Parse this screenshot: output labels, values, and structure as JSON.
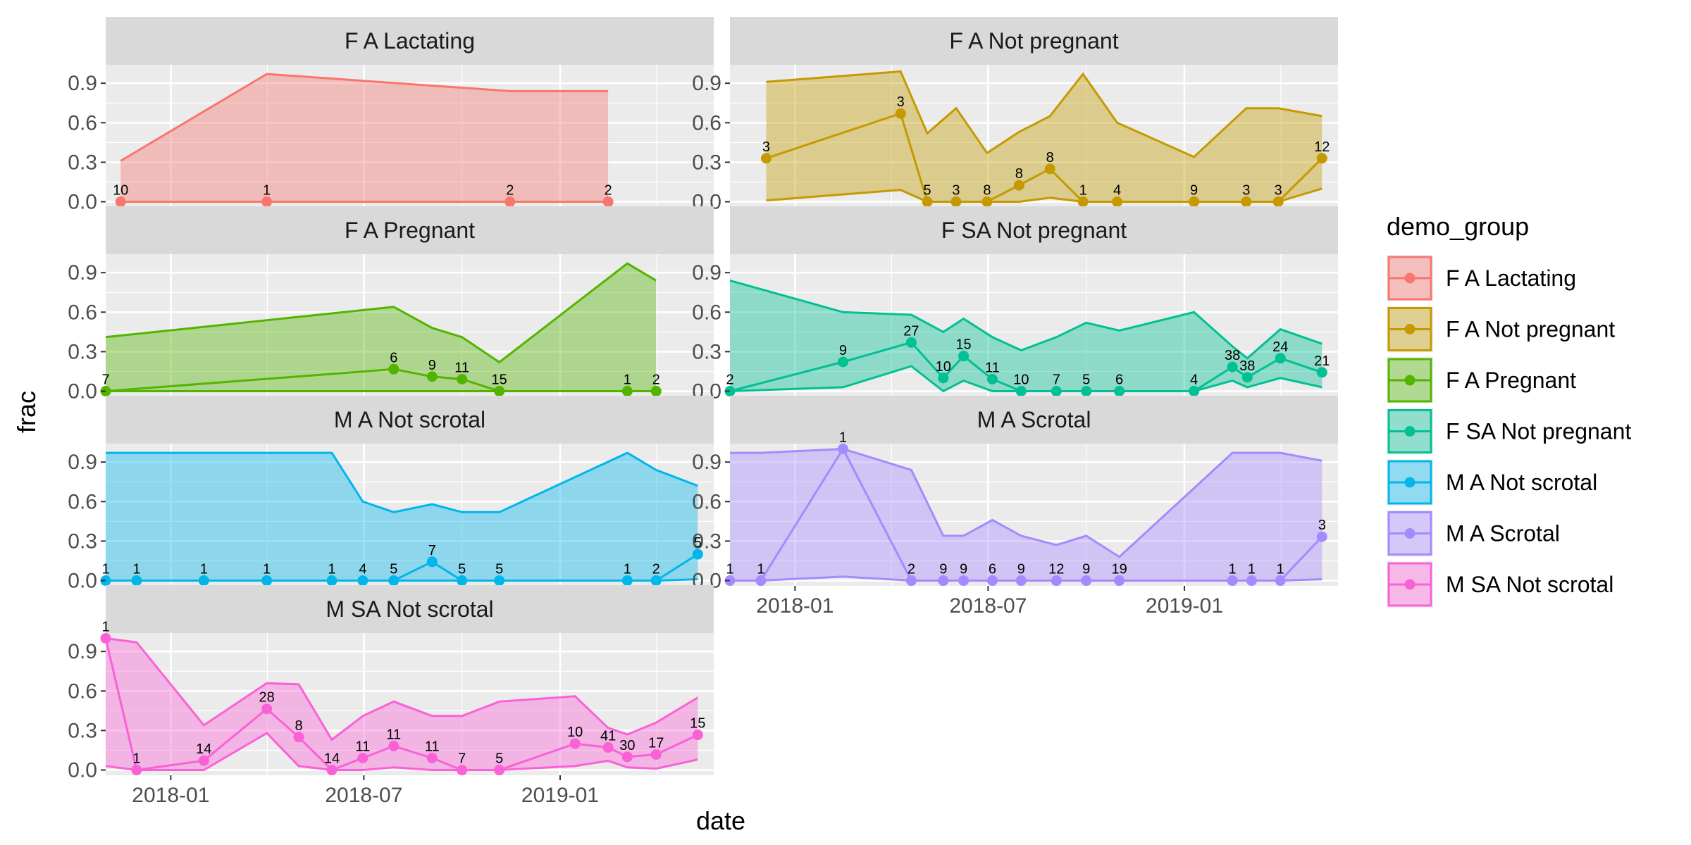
{
  "chart_data": {
    "type": "line",
    "chart_style": "faceted line + ribbon (ggplot2)",
    "xlabel": "date",
    "ylabel": "frac",
    "x_domain": [
      "2017-11-01",
      "2019-05-25"
    ],
    "ylim": [
      -0.04,
      1.04
    ],
    "y_ticks": [
      0,
      0.3,
      0.6,
      0.9
    ],
    "y_tick_labels": [
      "0.0",
      "0.3",
      "0.6",
      "0.9"
    ],
    "x_ticks": [
      "2018-01-01",
      "2018-07-01",
      "2019-01-01"
    ],
    "x_tick_labels": [
      "2018-01",
      "2018-07",
      "2019-01"
    ],
    "grid": true,
    "legend": {
      "title": "demo_group",
      "position": "right",
      "entries": [
        "F A Lactating",
        "F A Not pregnant",
        "F A Pregnant",
        "F SA Not pregnant",
        "M A Not scrotal",
        "M A Scrotal",
        "M SA Not scrotal"
      ]
    },
    "series": [
      {
        "name": "F A Lactating",
        "color": "#F8766D",
        "points": [
          {
            "date": "2017-11-15",
            "frac": 0.0,
            "n": 10,
            "lo": 0.0,
            "hi": 0.31
          },
          {
            "date": "2018-04-01",
            "frac": 0.0,
            "n": 1,
            "lo": 0.0,
            "hi": 0.97
          },
          {
            "date": "2018-11-15",
            "frac": 0.0,
            "n": 2,
            "lo": 0.0,
            "hi": 0.84
          },
          {
            "date": "2019-02-15",
            "frac": 0.0,
            "n": 2,
            "lo": 0.0,
            "hi": 0.84
          }
        ]
      },
      {
        "name": "F A Not pregnant",
        "color": "#C49A00",
        "points": [
          {
            "date": "2017-12-05",
            "frac": 0.33,
            "n": 3,
            "lo": 0.01,
            "hi": 0.91
          },
          {
            "date": "2018-04-10",
            "frac": 0.67,
            "n": 3,
            "lo": 0.09,
            "hi": 0.99
          },
          {
            "date": "2018-05-05",
            "frac": 0.0,
            "n": 5,
            "lo": 0.0,
            "hi": 0.52
          },
          {
            "date": "2018-06-01",
            "frac": 0.0,
            "n": 3,
            "lo": 0.0,
            "hi": 0.71
          },
          {
            "date": "2018-06-30",
            "frac": 0.0,
            "n": 8,
            "lo": 0.0,
            "hi": 0.37
          },
          {
            "date": "2018-07-30",
            "frac": 0.125,
            "n": 8,
            "lo": 0.0,
            "hi": 0.53
          },
          {
            "date": "2018-08-28",
            "frac": 0.25,
            "n": 8,
            "lo": 0.03,
            "hi": 0.65
          },
          {
            "date": "2018-09-28",
            "frac": 0.0,
            "n": 1,
            "lo": 0.0,
            "hi": 0.97
          },
          {
            "date": "2018-10-30",
            "frac": 0.0,
            "n": 4,
            "lo": 0.0,
            "hi": 0.6
          },
          {
            "date": "2019-01-10",
            "frac": 0.0,
            "n": 9,
            "lo": 0.0,
            "hi": 0.34
          },
          {
            "date": "2019-02-28",
            "frac": 0.0,
            "n": 3,
            "lo": 0.0,
            "hi": 0.71
          },
          {
            "date": "2019-03-30",
            "frac": 0.0,
            "n": 3,
            "lo": 0.0,
            "hi": 0.71
          },
          {
            "date": "2019-05-10",
            "frac": 0.33,
            "n": 12,
            "lo": 0.1,
            "hi": 0.65
          }
        ]
      },
      {
        "name": "F A Pregnant",
        "color": "#53B400",
        "points": [
          {
            "date": "2017-11-01",
            "frac": 0.0,
            "n": 7,
            "lo": 0.0,
            "hi": 0.41
          },
          {
            "date": "2018-07-29",
            "frac": 0.167,
            "n": 6,
            "lo": 0.0,
            "hi": 0.64
          },
          {
            "date": "2018-09-03",
            "frac": 0.111,
            "n": 9,
            "lo": 0.0,
            "hi": 0.48
          },
          {
            "date": "2018-10-01",
            "frac": 0.091,
            "n": 11,
            "lo": 0.0,
            "hi": 0.41
          },
          {
            "date": "2018-11-05",
            "frac": 0.0,
            "n": 15,
            "lo": 0.0,
            "hi": 0.22
          },
          {
            "date": "2019-03-05",
            "frac": 0.0,
            "n": 1,
            "lo": 0.0,
            "hi": 0.97
          },
          {
            "date": "2019-04-01",
            "frac": 0.0,
            "n": 2,
            "lo": 0.0,
            "hi": 0.84
          }
        ]
      },
      {
        "name": "F SA Not pregnant",
        "color": "#00C094",
        "points": [
          {
            "date": "2017-11-01",
            "frac": 0.0,
            "n": 2,
            "lo": 0.0,
            "hi": 0.84
          },
          {
            "date": "2018-02-15",
            "frac": 0.222,
            "n": 9,
            "lo": 0.03,
            "hi": 0.6
          },
          {
            "date": "2018-04-20",
            "frac": 0.37,
            "n": 27,
            "lo": 0.19,
            "hi": 0.58
          },
          {
            "date": "2018-05-20",
            "frac": 0.1,
            "n": 10,
            "lo": 0.0,
            "hi": 0.45
          },
          {
            "date": "2018-06-08",
            "frac": 0.267,
            "n": 15,
            "lo": 0.08,
            "hi": 0.55
          },
          {
            "date": "2018-07-05",
            "frac": 0.091,
            "n": 11,
            "lo": 0.0,
            "hi": 0.41
          },
          {
            "date": "2018-08-01",
            "frac": 0.0,
            "n": 10,
            "lo": 0.0,
            "hi": 0.31
          },
          {
            "date": "2018-09-03",
            "frac": 0.0,
            "n": 7,
            "lo": 0.0,
            "hi": 0.41
          },
          {
            "date": "2018-10-01",
            "frac": 0.0,
            "n": 5,
            "lo": 0.0,
            "hi": 0.52
          },
          {
            "date": "2018-11-01",
            "frac": 0.0,
            "n": 6,
            "lo": 0.0,
            "hi": 0.46
          },
          {
            "date": "2019-01-10",
            "frac": 0.0,
            "n": 4,
            "lo": 0.0,
            "hi": 0.6
          },
          {
            "date": "2019-02-15",
            "frac": 0.184,
            "n": 38,
            "lo": 0.08,
            "hi": 0.34
          },
          {
            "date": "2019-03-01",
            "frac": 0.105,
            "n": 38,
            "lo": 0.03,
            "hi": 0.25
          },
          {
            "date": "2019-04-01",
            "frac": 0.25,
            "n": 24,
            "lo": 0.1,
            "hi": 0.47
          },
          {
            "date": "2019-05-10",
            "frac": 0.143,
            "n": 21,
            "lo": 0.03,
            "hi": 0.36
          }
        ]
      },
      {
        "name": "M A Not scrotal",
        "color": "#00B6EB",
        "points": [
          {
            "date": "2017-11-01",
            "frac": 0.0,
            "n": 1,
            "lo": 0.0,
            "hi": 0.97
          },
          {
            "date": "2017-11-30",
            "frac": 0.0,
            "n": 1,
            "lo": 0.0,
            "hi": 0.97
          },
          {
            "date": "2018-02-01",
            "frac": 0.0,
            "n": 1,
            "lo": 0.0,
            "hi": 0.97
          },
          {
            "date": "2018-04-01",
            "frac": 0.0,
            "n": 1,
            "lo": 0.0,
            "hi": 0.97
          },
          {
            "date": "2018-06-01",
            "frac": 0.0,
            "n": 1,
            "lo": 0.0,
            "hi": 0.97
          },
          {
            "date": "2018-06-30",
            "frac": 0.0,
            "n": 4,
            "lo": 0.0,
            "hi": 0.6
          },
          {
            "date": "2018-07-29",
            "frac": 0.0,
            "n": 5,
            "lo": 0.0,
            "hi": 0.52
          },
          {
            "date": "2018-09-03",
            "frac": 0.143,
            "n": 7,
            "lo": 0.0,
            "hi": 0.58
          },
          {
            "date": "2018-10-01",
            "frac": 0.0,
            "n": 5,
            "lo": 0.0,
            "hi": 0.52
          },
          {
            "date": "2018-11-05",
            "frac": 0.0,
            "n": 5,
            "lo": 0.0,
            "hi": 0.52
          },
          {
            "date": "2019-03-05",
            "frac": 0.0,
            "n": 1,
            "lo": 0.0,
            "hi": 0.97
          },
          {
            "date": "2019-04-01",
            "frac": 0.0,
            "n": 2,
            "lo": 0.0,
            "hi": 0.84
          },
          {
            "date": "2019-05-10",
            "frac": 0.2,
            "n": 5,
            "lo": 0.01,
            "hi": 0.72
          }
        ]
      },
      {
        "name": "M A Scrotal",
        "color": "#A58AFF",
        "points": [
          {
            "date": "2017-11-01",
            "frac": 0.0,
            "n": 1,
            "lo": 0.0,
            "hi": 0.97
          },
          {
            "date": "2017-11-30",
            "frac": 0.0,
            "n": 1,
            "lo": 0.0,
            "hi": 0.97
          },
          {
            "date": "2018-02-15",
            "frac": 1.0,
            "n": 1,
            "lo": 0.03,
            "hi": 1.0
          },
          {
            "date": "2018-04-20",
            "frac": 0.0,
            "n": 2,
            "lo": 0.0,
            "hi": 0.84
          },
          {
            "date": "2018-05-20",
            "frac": 0.0,
            "n": 9,
            "lo": 0.0,
            "hi": 0.34
          },
          {
            "date": "2018-06-08",
            "frac": 0.0,
            "n": 9,
            "lo": 0.0,
            "hi": 0.34
          },
          {
            "date": "2018-07-05",
            "frac": 0.0,
            "n": 6,
            "lo": 0.0,
            "hi": 0.46
          },
          {
            "date": "2018-08-01",
            "frac": 0.0,
            "n": 9,
            "lo": 0.0,
            "hi": 0.34
          },
          {
            "date": "2018-09-03",
            "frac": 0.0,
            "n": 12,
            "lo": 0.0,
            "hi": 0.27
          },
          {
            "date": "2018-10-01",
            "frac": 0.0,
            "n": 9,
            "lo": 0.0,
            "hi": 0.34
          },
          {
            "date": "2018-11-01",
            "frac": 0.0,
            "n": 19,
            "lo": 0.0,
            "hi": 0.18
          },
          {
            "date": "2019-02-15",
            "frac": 0.0,
            "n": 1,
            "lo": 0.0,
            "hi": 0.97
          },
          {
            "date": "2019-03-05",
            "frac": 0.0,
            "n": 1,
            "lo": 0.0,
            "hi": 0.97
          },
          {
            "date": "2019-04-01",
            "frac": 0.0,
            "n": 1,
            "lo": 0.0,
            "hi": 0.97
          },
          {
            "date": "2019-05-10",
            "frac": 0.333,
            "n": 3,
            "lo": 0.01,
            "hi": 0.91
          }
        ]
      },
      {
        "name": "M SA Not scrotal",
        "color": "#FB61D7",
        "points": [
          {
            "date": "2017-11-01",
            "frac": 1.0,
            "n": 1,
            "lo": 0.03,
            "hi": 1.0
          },
          {
            "date": "2017-11-30",
            "frac": 0.0,
            "n": 1,
            "lo": 0.0,
            "hi": 0.97
          },
          {
            "date": "2018-02-01",
            "frac": 0.071,
            "n": 14,
            "lo": 0.0,
            "hi": 0.34
          },
          {
            "date": "2018-04-01",
            "frac": 0.464,
            "n": 28,
            "lo": 0.28,
            "hi": 0.66
          },
          {
            "date": "2018-05-01",
            "frac": 0.25,
            "n": 8,
            "lo": 0.03,
            "hi": 0.65
          },
          {
            "date": "2018-06-01",
            "frac": 0.0,
            "n": 14,
            "lo": 0.0,
            "hi": 0.23
          },
          {
            "date": "2018-06-30",
            "frac": 0.091,
            "n": 11,
            "lo": 0.0,
            "hi": 0.41
          },
          {
            "date": "2018-07-29",
            "frac": 0.182,
            "n": 11,
            "lo": 0.02,
            "hi": 0.52
          },
          {
            "date": "2018-09-03",
            "frac": 0.091,
            "n": 11,
            "lo": 0.0,
            "hi": 0.41
          },
          {
            "date": "2018-10-01",
            "frac": 0.0,
            "n": 7,
            "lo": 0.0,
            "hi": 0.41
          },
          {
            "date": "2018-11-05",
            "frac": 0.0,
            "n": 5,
            "lo": 0.0,
            "hi": 0.52
          },
          {
            "date": "2019-01-15",
            "frac": 0.2,
            "n": 10,
            "lo": 0.03,
            "hi": 0.56
          },
          {
            "date": "2019-02-15",
            "frac": 0.171,
            "n": 41,
            "lo": 0.07,
            "hi": 0.32
          },
          {
            "date": "2019-03-05",
            "frac": 0.1,
            "n": 30,
            "lo": 0.02,
            "hi": 0.27
          },
          {
            "date": "2019-04-01",
            "frac": 0.118,
            "n": 17,
            "lo": 0.01,
            "hi": 0.36
          },
          {
            "date": "2019-05-10",
            "frac": 0.267,
            "n": 15,
            "lo": 0.08,
            "hi": 0.55
          }
        ]
      }
    ]
  }
}
